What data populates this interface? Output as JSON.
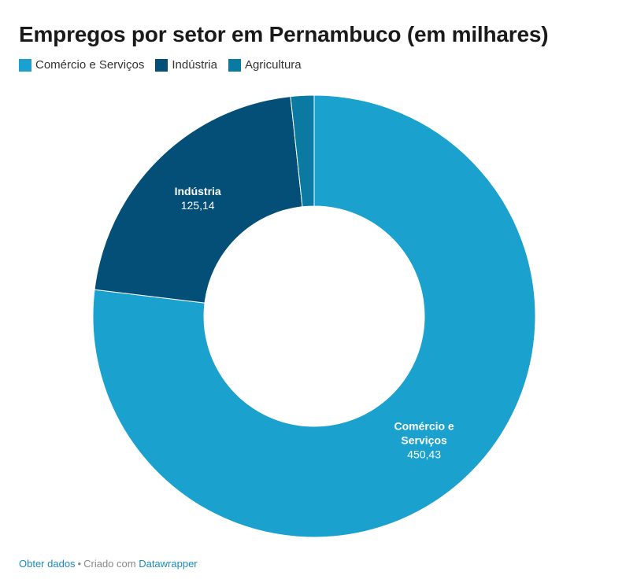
{
  "chart_data": {
    "type": "pie",
    "variant": "donut",
    "title": "Empregos por setor em Pernambuco (em milhares)",
    "legend_position": "top-left",
    "slices": [
      {
        "name": "Comércio e Serviços",
        "label_lines": [
          "Comércio e",
          "Serviços"
        ],
        "value": 450.43,
        "value_label": "450,43",
        "color": "#1aa1ce",
        "show_label": true
      },
      {
        "name": "Indústria",
        "label_lines": [
          "Indústria"
        ],
        "value": 125.14,
        "value_label": "125,14",
        "color": "#034f78",
        "show_label": true
      },
      {
        "name": "Agricultura",
        "label_lines": [
          "Agricultura"
        ],
        "value": 10.0,
        "value_label": "",
        "color": "#0a7aa3",
        "show_label": false
      }
    ]
  },
  "footer": {
    "get_data": "Obter dados",
    "separator": "•",
    "created_with": "Criado com",
    "tool": "Datawrapper"
  }
}
